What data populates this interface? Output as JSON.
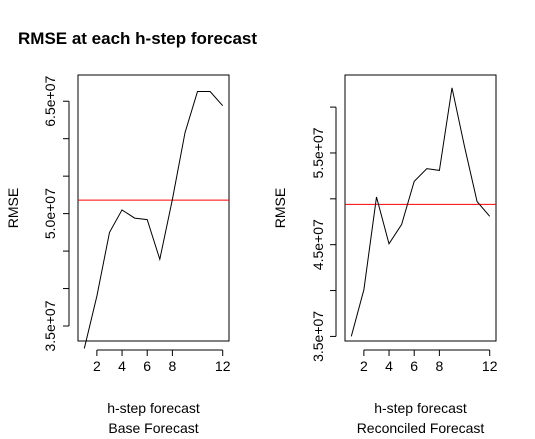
{
  "title": "RMSE at each h-step forecast",
  "chart_data": [
    {
      "type": "line",
      "xlabel": "h-step forecast",
      "subtitle": "Base Forecast",
      "ylabel": "RMSE",
      "xlim": [
        0.5,
        12.5
      ],
      "ylim": [
        33000000,
        68500000
      ],
      "xticks": [
        2,
        4,
        6,
        8,
        12
      ],
      "xtick_labels": [
        "2",
        "4",
        "6",
        "8",
        "12"
      ],
      "yticks": [
        35000000,
        40000000,
        45000000,
        50000000,
        55000000,
        60000000,
        65000000
      ],
      "ytick_labels": [
        "3.5e+07",
        "",
        "",
        "5.0e+07",
        "",
        "",
        "6.5e+07"
      ],
      "hline": {
        "value": 51800000,
        "color": "#ff0000"
      },
      "line_color": "#000000",
      "grid": false,
      "x": [
        1,
        2,
        3,
        4,
        5,
        6,
        7,
        8,
        9,
        10,
        11,
        12
      ],
      "values": [
        32000000,
        39000000,
        47500000,
        50500000,
        49400000,
        49200000,
        43900000,
        51900000,
        60800000,
        66300000,
        66300000,
        64400000
      ]
    },
    {
      "type": "line",
      "xlabel": "h-step forecast",
      "subtitle": "Reconciled Forecast",
      "ylabel": "RMSE",
      "xlim": [
        0.5,
        12.5
      ],
      "ylim": [
        34500000,
        63500000
      ],
      "xticks": [
        2,
        4,
        6,
        8,
        12
      ],
      "xtick_labels": [
        "2",
        "4",
        "6",
        "8",
        "12"
      ],
      "yticks": [
        35000000,
        40000000,
        45000000,
        50000000,
        55000000,
        60000000
      ],
      "ytick_labels": [
        "3.5e+07",
        "",
        "4.5e+07",
        "",
        "5.5e+07",
        ""
      ],
      "hline": {
        "value": 49400000,
        "color": "#ff0000"
      },
      "line_color": "#000000",
      "grid": false,
      "x": [
        1,
        2,
        3,
        4,
        5,
        6,
        7,
        8,
        9,
        10,
        11,
        12
      ],
      "values": [
        35000000,
        40100000,
        50200000,
        45100000,
        47200000,
        51900000,
        53300000,
        53100000,
        62100000,
        55700000,
        49700000,
        48100000
      ]
    }
  ]
}
